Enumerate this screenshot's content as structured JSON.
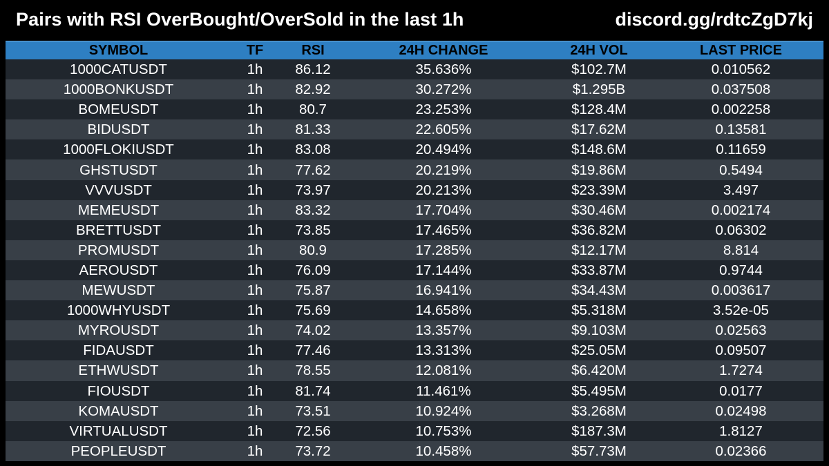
{
  "header": {
    "title": "Pairs with RSI OverBought/OverSold in the last 1h",
    "link": "discord.gg/rdtcZgD7kj"
  },
  "colors": {
    "background": "#000000",
    "header_row": "#2e7fc2",
    "row_dark": "#20262d",
    "row_light": "#383f47",
    "text": "#ffffff",
    "header_text": "#000000"
  },
  "table": {
    "columns": [
      "SYMBOL",
      "TF",
      "RSI",
      "24H CHANGE",
      "24H VOL",
      "LAST PRICE"
    ],
    "rows": [
      [
        "1000CATUSDT",
        "1h",
        "86.12",
        "35.636%",
        "$102.7M",
        "0.010562"
      ],
      [
        "1000BONKUSDT",
        "1h",
        "82.92",
        "30.272%",
        "$1.295B",
        "0.037508"
      ],
      [
        "BOMEUSDT",
        "1h",
        "80.7",
        "23.253%",
        "$128.4M",
        "0.002258"
      ],
      [
        "BIDUSDT",
        "1h",
        "81.33",
        "22.605%",
        "$17.62M",
        "0.13581"
      ],
      [
        "1000FLOKIUSDT",
        "1h",
        "83.08",
        "20.494%",
        "$148.6M",
        "0.11659"
      ],
      [
        "GHSTUSDT",
        "1h",
        "77.62",
        "20.219%",
        "$19.86M",
        "0.5494"
      ],
      [
        "VVVUSDT",
        "1h",
        "73.97",
        "20.213%",
        "$23.39M",
        "3.497"
      ],
      [
        "MEMEUSDT",
        "1h",
        "83.32",
        "17.704%",
        "$30.46M",
        "0.002174"
      ],
      [
        "BRETTUSDT",
        "1h",
        "73.85",
        "17.465%",
        "$36.82M",
        "0.06302"
      ],
      [
        "PROMUSDT",
        "1h",
        "80.9",
        "17.285%",
        "$12.17M",
        "8.814"
      ],
      [
        "AEROUSDT",
        "1h",
        "76.09",
        "17.144%",
        "$33.87M",
        "0.9744"
      ],
      [
        "MEWUSDT",
        "1h",
        "75.87",
        "16.941%",
        "$34.43M",
        "0.003617"
      ],
      [
        "1000WHYUSDT",
        "1h",
        "75.69",
        "14.658%",
        "$5.318M",
        "3.52e-05"
      ],
      [
        "MYROUSDT",
        "1h",
        "74.02",
        "13.357%",
        "$9.103M",
        "0.02563"
      ],
      [
        "FIDAUSDT",
        "1h",
        "77.46",
        "13.313%",
        "$25.05M",
        "0.09507"
      ],
      [
        "ETHWUSDT",
        "1h",
        "78.55",
        "12.081%",
        "$6.420M",
        "1.7274"
      ],
      [
        "FIOUSDT",
        "1h",
        "81.74",
        "11.461%",
        "$5.495M",
        "0.0177"
      ],
      [
        "KOMAUSDT",
        "1h",
        "73.51",
        "10.924%",
        "$3.268M",
        "0.02498"
      ],
      [
        "VIRTUALUSDT",
        "1h",
        "72.56",
        "10.753%",
        "$187.3M",
        "1.8127"
      ],
      [
        "PEOPLEUSDT",
        "1h",
        "73.72",
        "10.458%",
        "$57.73M",
        "0.02366"
      ]
    ]
  }
}
